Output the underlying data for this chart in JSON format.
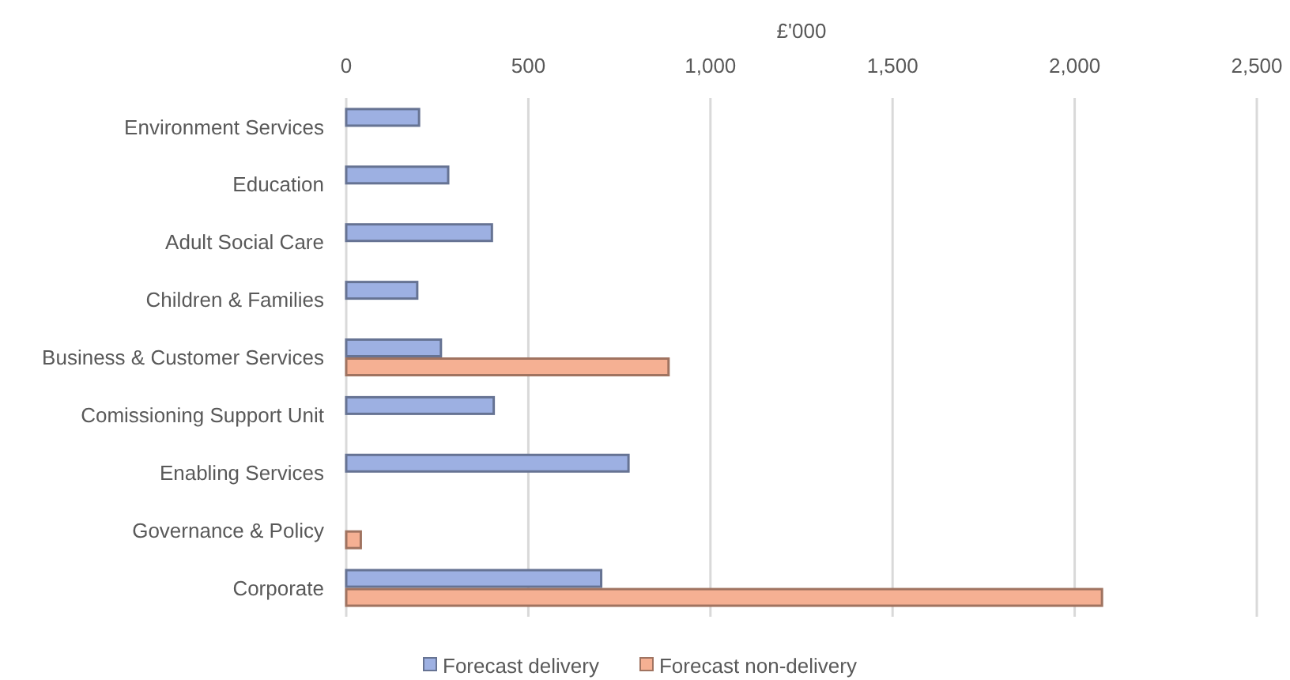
{
  "chart_data": {
    "type": "bar",
    "orientation": "horizontal",
    "xlabel": "£'000",
    "categories": [
      "Environment Services",
      "Education",
      "Adult Social Care",
      "Children & Families",
      "Business & Customer Services",
      "Comissioning Support Unit",
      "Enabling Services",
      "Governance & Policy",
      "Corporate"
    ],
    "series": [
      {
        "name": "Forecast delivery",
        "color": "#9db0e2",
        "values": [
          200,
          280,
          400,
          195,
          260,
          405,
          775,
          null,
          700
        ]
      },
      {
        "name": "Forecast non-delivery",
        "color": "#f5b093",
        "values": [
          null,
          null,
          null,
          null,
          885,
          null,
          null,
          40,
          2075
        ]
      }
    ],
    "xlim": [
      0,
      2500
    ],
    "xticks": [
      {
        "value": 0,
        "label": "0"
      },
      {
        "value": 500,
        "label": "500"
      },
      {
        "value": 1000,
        "label": "1,000"
      },
      {
        "value": 1500,
        "label": "1,500"
      },
      {
        "value": 2000,
        "label": "2,000"
      },
      {
        "value": 2500,
        "label": "2,500"
      }
    ],
    "grid": "x",
    "legend": "bottom"
  }
}
